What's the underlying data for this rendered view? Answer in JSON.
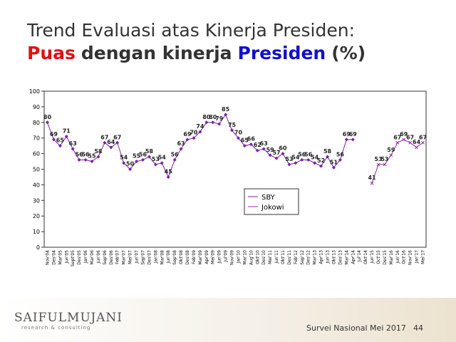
{
  "chart_data": {
    "type": "line",
    "title": "Trend Evaluasi atas Kinerja Presiden:",
    "subtitle_parts": [
      {
        "text": "Puas",
        "color": "#e01010"
      },
      {
        "text": "dengan kinerja",
        "color": "#333333"
      },
      {
        "text": "Presiden",
        "color": "#1010d0"
      },
      {
        "text": "(%)",
        "color": "#333333"
      }
    ],
    "categories": [
      "Nov'04",
      "Des'04",
      "Mar'05",
      "Jun'05",
      "Sept'05",
      "Des'05",
      "Jan'06",
      "Mar'06",
      "Jun'06",
      "Sep'06",
      "Des'06",
      "Feb'07",
      "Mar'07",
      "Mei'07",
      "Jun'07",
      "Sep'07",
      "Des'07",
      "Jan'08",
      "Mar'08",
      "Jun'08",
      "Sep'08",
      "Okt'08",
      "Des'08",
      "Feb'09",
      "Mar'09",
      "Apr'09",
      "Mei'09",
      "Jun'09",
      "Jul'09",
      "Nov'09",
      "Jan'10",
      "Mar'10",
      "Aug'10",
      "Okt'10",
      "Des'10",
      "Mei'11",
      "Jun'11",
      "Okt'11",
      "Des'11",
      "Feb'12",
      "Sep'12",
      "Des'12",
      "Mar'13",
      "Apr'13",
      "Jun'13",
      "Okt'13",
      "Des'13",
      "Mar'14",
      "Apr'14",
      "Jul'14",
      "Okt'14",
      "Jun'15",
      "Oct'15",
      "Des'15",
      "Mar'16",
      "Jun'16",
      "Oct'16",
      "Nov'16",
      "Jan'17",
      "Mei'17"
    ],
    "series": [
      {
        "name": "SBY",
        "color": "#7b1fa2",
        "marker": "diamond",
        "values": [
          80,
          69,
          65,
          71,
          63,
          56,
          56,
          55,
          58,
          67,
          64,
          67,
          54,
          50,
          55,
          56,
          58,
          53,
          54,
          45,
          56,
          63,
          69,
          70,
          74,
          80,
          80,
          79,
          85,
          75,
          70,
          65,
          66,
          62,
          63,
          59,
          57,
          60,
          53,
          54,
          56,
          56,
          54,
          52,
          58,
          51,
          56,
          69,
          69,
          null,
          null,
          null,
          null,
          null,
          null,
          null,
          null,
          null,
          null,
          null
        ]
      },
      {
        "name": "Jokowi",
        "color": "#9c27b0",
        "marker": "x",
        "values": [
          null,
          null,
          null,
          null,
          null,
          null,
          null,
          null,
          null,
          null,
          null,
          null,
          null,
          null,
          null,
          null,
          null,
          null,
          null,
          null,
          null,
          null,
          null,
          null,
          null,
          null,
          null,
          null,
          null,
          null,
          null,
          null,
          null,
          null,
          null,
          null,
          null,
          null,
          null,
          null,
          null,
          null,
          null,
          null,
          null,
          null,
          null,
          null,
          null,
          null,
          null,
          41,
          53,
          53,
          59,
          67,
          69,
          67,
          64,
          67
        ]
      }
    ],
    "ylim": [
      0,
      100
    ],
    "yticks": [
      0,
      10,
      20,
      30,
      40,
      50,
      60,
      70,
      80,
      90,
      100
    ],
    "footer": {
      "logo": "SAIFULMUJANI",
      "logo_sub": "research & consulting",
      "source": "Survei Nasional Mei 2017",
      "page": "44"
    }
  }
}
